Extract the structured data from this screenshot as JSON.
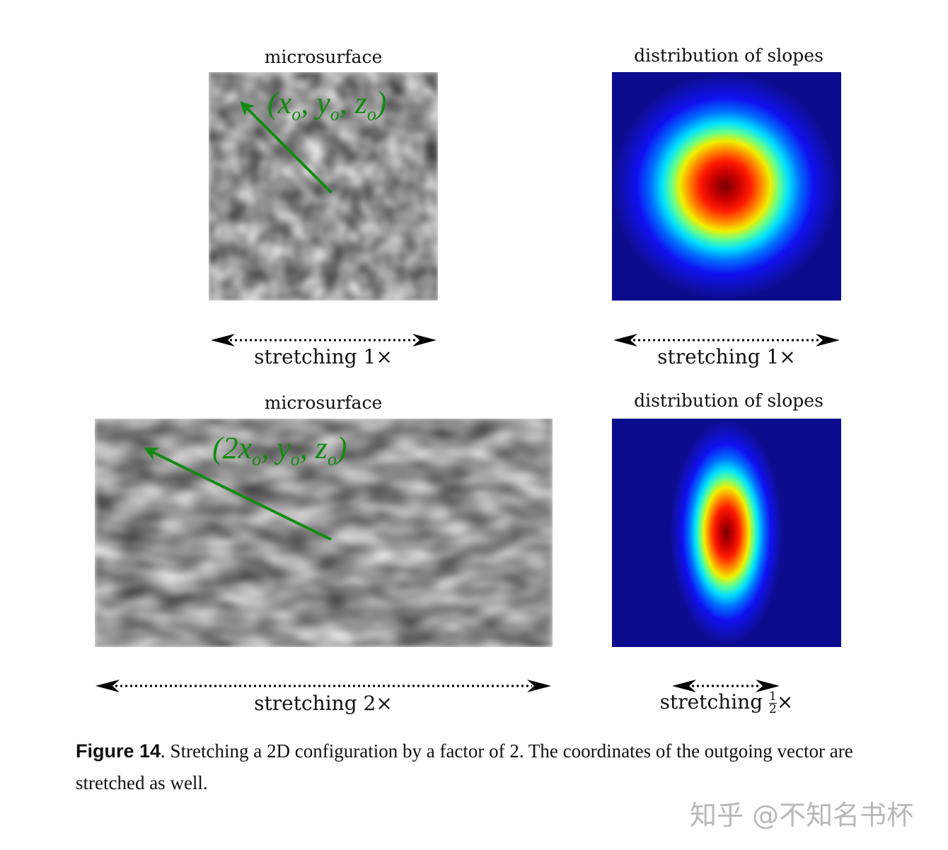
{
  "panels": {
    "top_left": {
      "title": "microsurface",
      "vector_label": "(x_o, y_o, z_o)",
      "vector_parts": [
        "(",
        "x",
        "o",
        ", ",
        "y",
        "o",
        ", ",
        "z",
        "o",
        ")"
      ],
      "stretch_label": "stretching 1×"
    },
    "top_right": {
      "title": "distribution of slopes",
      "stretch_label": "stretching 1×"
    },
    "bottom_left": {
      "title": "microsurface",
      "vector_parts": [
        "(2",
        "x",
        "o",
        ", ",
        "y",
        "o",
        ", ",
        "z",
        "o",
        ")"
      ],
      "stretch_label": "stretching 2×"
    },
    "bottom_right": {
      "title": "distribution of slopes",
      "stretch_prefix": "stretching",
      "frac_num": "1",
      "frac_den": "2",
      "stretch_suffix": "×"
    }
  },
  "caption": {
    "label": "Figure 14",
    "text": ".  Stretching a 2D configuration by a factor of 2.  The coordinates of the outgoing vector are stretched as well."
  },
  "watermark": "知乎 @不知名书杯",
  "colors": {
    "vector": "#138a13",
    "slope_bg": "#0c0c8e"
  }
}
